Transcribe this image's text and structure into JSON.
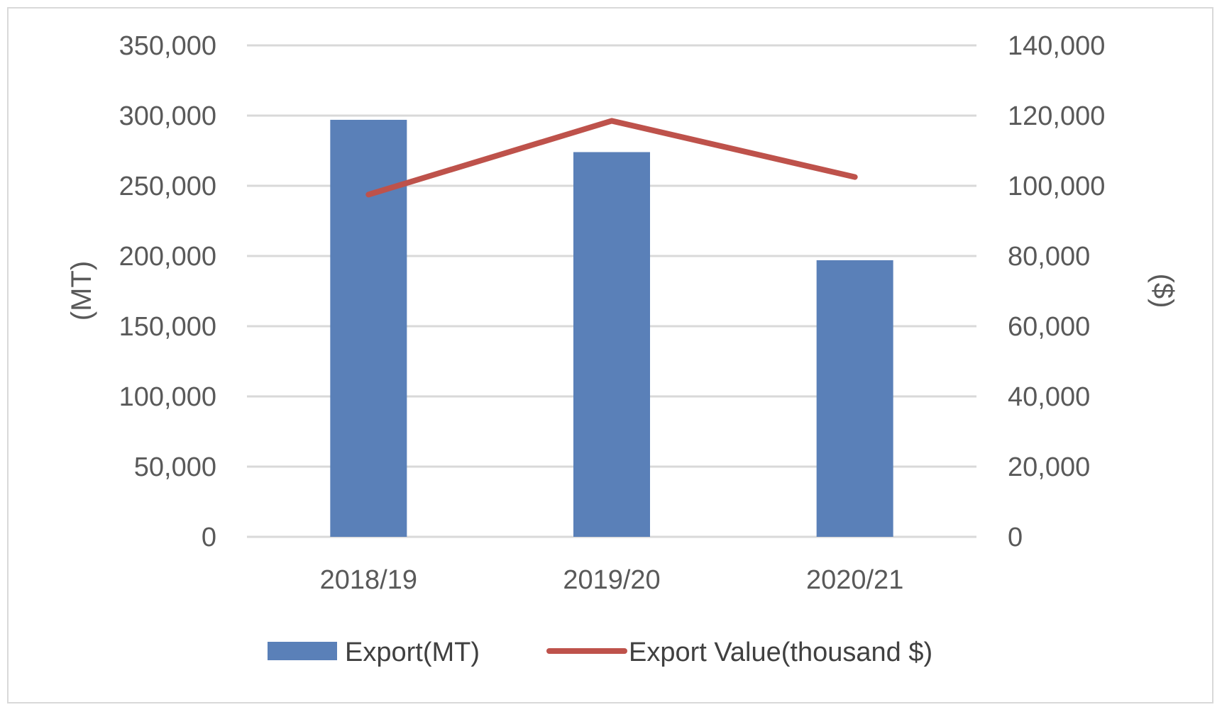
{
  "chart_data": {
    "type": "bar",
    "categories": [
      "2018/19",
      "2019/20",
      "2020/21"
    ],
    "series": [
      {
        "name": "Export(MT)",
        "type": "bar",
        "axis": "left",
        "color": "#5a80b8",
        "values": [
          297000,
          274000,
          197000
        ]
      },
      {
        "name": "Export Value(thousand $)",
        "type": "line",
        "axis": "right",
        "color": "#be524b",
        "values": [
          97500,
          118500,
          102500
        ]
      }
    ],
    "ylabel_left": "(MT)",
    "ylabel_right": "($)",
    "ylim_left": [
      0,
      350000
    ],
    "ylim_right": [
      0,
      140000
    ],
    "yticks_left": [
      "0",
      "50,000",
      "100,000",
      "150,000",
      "200,000",
      "250,000",
      "300,000",
      "350,000"
    ],
    "yticks_right": [
      "0",
      "20,000",
      "40,000",
      "60,000",
      "80,000",
      "100,000",
      "120,000",
      "140,000"
    ],
    "grid": true,
    "legend": "bottom"
  }
}
